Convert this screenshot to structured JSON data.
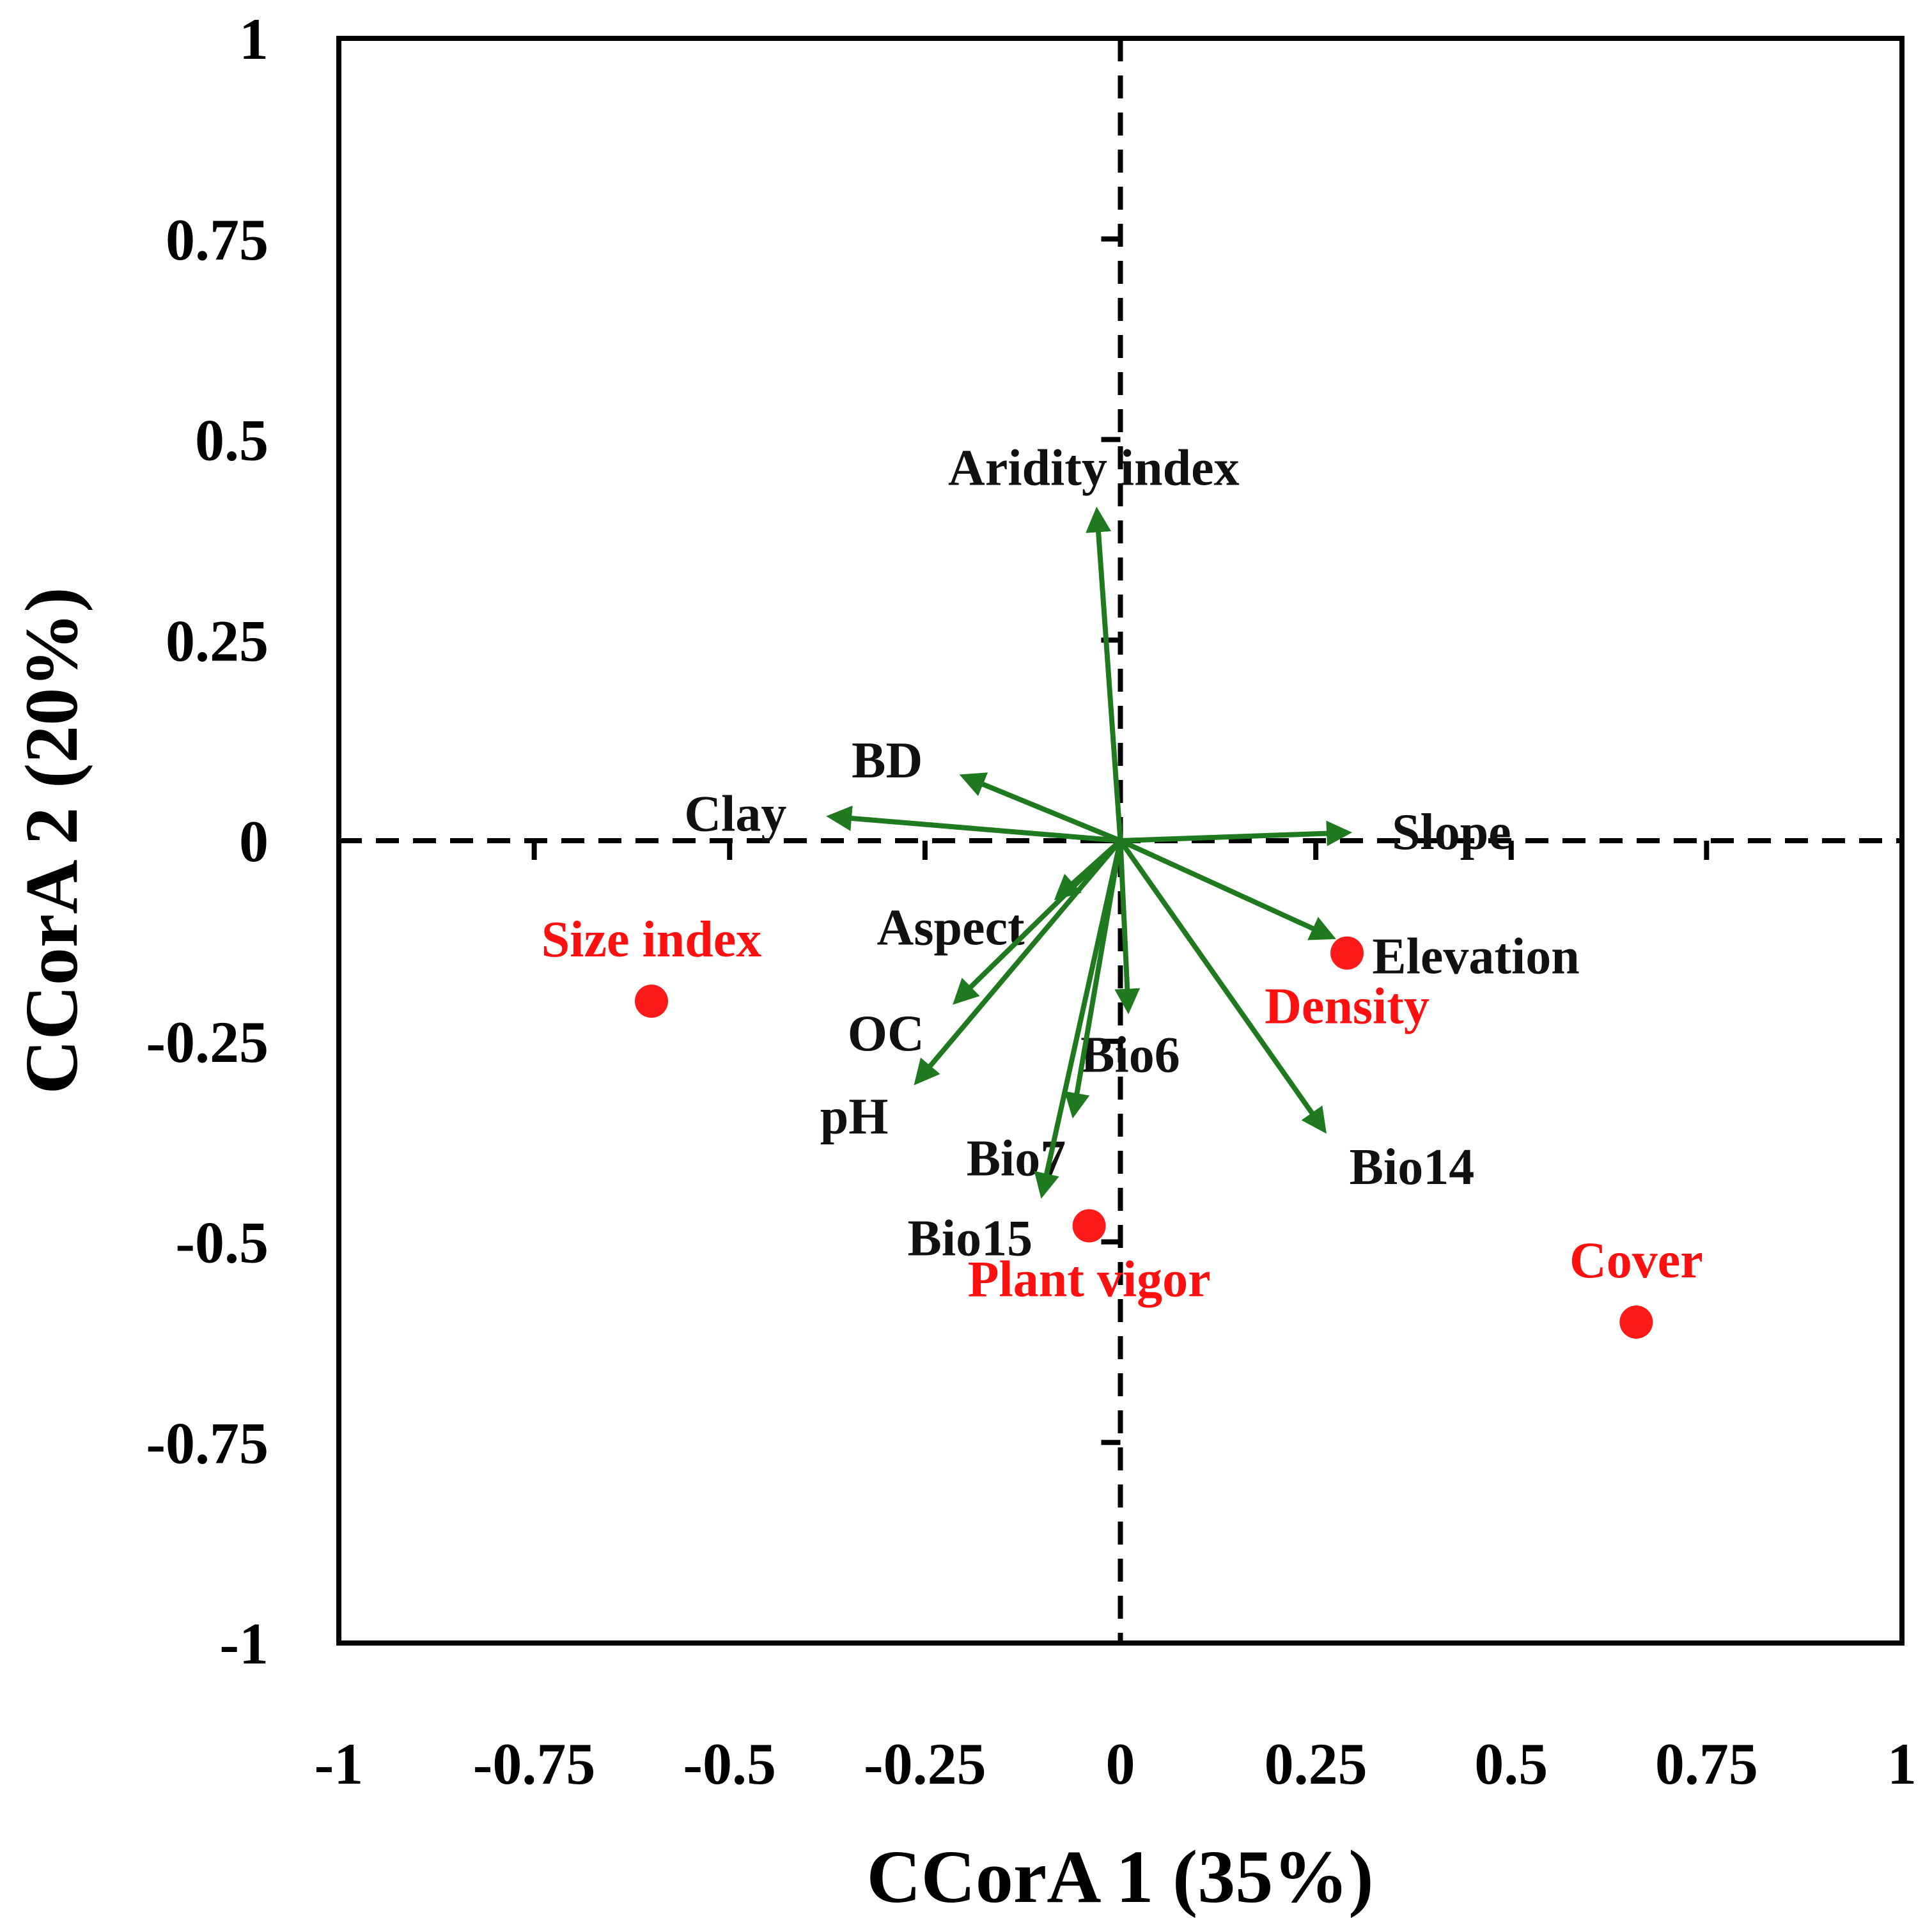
{
  "chart_data": {
    "type": "scatter",
    "subtype": "biplot",
    "title": "",
    "xlabel": "CCorA 1 (35%)",
    "ylabel": "CCorA 2 (20%)",
    "xlim": [
      -1,
      1
    ],
    "ylim": [
      -1,
      1
    ],
    "x_ticks": [
      "-1",
      "-0.75",
      "-0.5",
      "-0.25",
      "0",
      "0.25",
      "0.5",
      "0.75",
      "1"
    ],
    "y_ticks": [
      "1",
      "0.75",
      "0.5",
      "0.25",
      "0",
      "-0.25",
      "-0.5",
      "-0.75",
      "-1"
    ],
    "grid": false,
    "zero_lines": "dashed",
    "vector_color": "#1f7a1f",
    "point_color": "#ff1a1a",
    "vectors": [
      {
        "name": "Aridity index",
        "x": -0.03,
        "y": 0.41
      },
      {
        "name": "BD",
        "x": -0.2,
        "y": 0.08
      },
      {
        "name": "Clay",
        "x": -0.37,
        "y": 0.03
      },
      {
        "name": "Slope",
        "x": 0.29,
        "y": 0.01
      },
      {
        "name": "Aspect",
        "x": -0.08,
        "y": -0.07
      },
      {
        "name": "Elevation",
        "x": 0.27,
        "y": -0.12
      },
      {
        "name": "OC",
        "x": -0.21,
        "y": -0.2
      },
      {
        "name": "pH",
        "x": -0.26,
        "y": -0.3
      },
      {
        "name": "Bio6",
        "x": 0.01,
        "y": -0.21
      },
      {
        "name": "Bio7",
        "x": -0.06,
        "y": -0.34
      },
      {
        "name": "Bio15",
        "x": -0.1,
        "y": -0.44
      },
      {
        "name": "Bio14",
        "x": 0.26,
        "y": -0.36
      }
    ],
    "points": [
      {
        "name": "Size index",
        "x": -0.6,
        "y": -0.2
      },
      {
        "name": "Density",
        "x": 0.29,
        "y": -0.14
      },
      {
        "name": "Plant vigor",
        "x": -0.04,
        "y": -0.48
      },
      {
        "name": "Cover",
        "x": 0.66,
        "y": -0.6
      }
    ]
  }
}
